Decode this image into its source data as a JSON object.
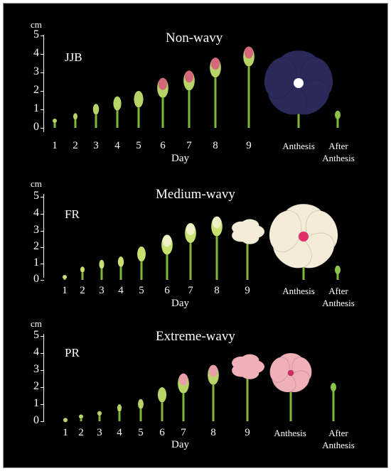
{
  "unit_label": "cm",
  "y_ticks": [
    "5",
    "4",
    "3",
    "2",
    "1",
    "0"
  ],
  "day_numbers": [
    "1",
    "2",
    "3",
    "4",
    "5",
    "6",
    "7",
    "8",
    "9"
  ],
  "day_label": "Day",
  "anthesis_label": "Anthesis",
  "after_anthesis_label": "After Anthesis",
  "panels": [
    {
      "title": "Non-wavy",
      "cultivar": "JJB",
      "bud_heights_cm": [
        0.5,
        0.8,
        1.3,
        1.7,
        2.0,
        2.7,
        3.1,
        3.8,
        4.4
      ],
      "bud_color": "#b8d468",
      "bud_tip_color": "#d4687a",
      "flower_color": "#2a2a5a",
      "flower_eye_color": "#ffffff",
      "after_anthesis_height_cm": 0.7
    },
    {
      "title": "Medium-wavy",
      "cultivar": "FR",
      "bud_heights_cm": [
        0.3,
        0.8,
        1.2,
        1.4,
        2.0,
        2.7,
        3.4,
        3.8,
        3.4
      ],
      "bud_color": "#c8e070",
      "bud_tip_color": "#f0f0c8",
      "flower_color": "#f5ecd8",
      "flower_eye_color": "#e0306a",
      "after_anthesis_height_cm": 0.6
    },
    {
      "title": "Extreme-wavy",
      "cultivar": "PR",
      "bud_heights_cm": [
        0.2,
        0.4,
        0.6,
        1.0,
        1.3,
        2.0,
        2.8,
        3.3,
        3.7
      ],
      "bud_color": "#b8d468",
      "bud_tip_color": "#e8a0a8",
      "flower_color": "#f0b0b8",
      "flower_eye_color": "#c83060",
      "after_anthesis_height_cm": 2.0
    }
  ]
}
